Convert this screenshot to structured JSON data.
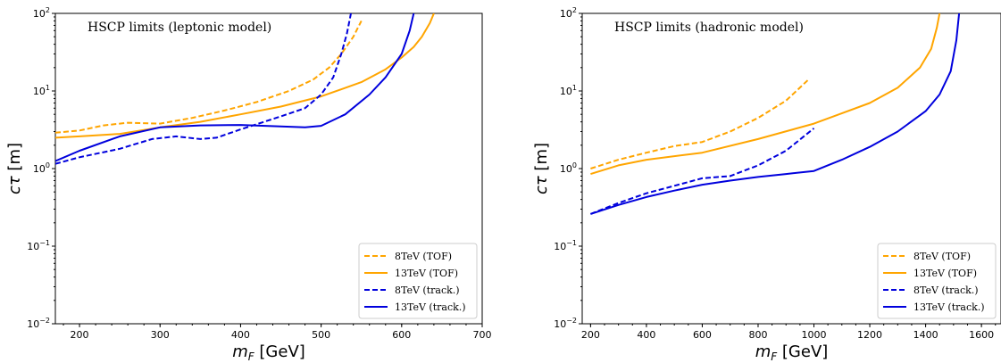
{
  "colors": {
    "orange": "#ffa500",
    "blue": "#0000dd"
  },
  "chart_data": [
    {
      "type": "line",
      "title": "HSCP limits (leptonic model)",
      "xlabel": "m_F [GeV]",
      "ylabel": "cτ [m]",
      "xlim": [
        170,
        700
      ],
      "ylim": [
        0.01,
        100
      ],
      "yscale": "log",
      "xticks": [
        "200",
        "300",
        "400",
        "500",
        "600",
        "700"
      ],
      "yticks": [
        "10^-2",
        "10^-1",
        "10^0",
        "10^1",
        "10^2"
      ],
      "grid": false,
      "legend_position": "lower-right",
      "series": [
        {
          "name": "8TeV (TOF)",
          "style": "dashed",
          "color": "#ffa500",
          "x": [
            170,
            200,
            230,
            260,
            300,
            340,
            380,
            420,
            460,
            490,
            510,
            525,
            540,
            550
          ],
          "y": [
            2.9,
            3.1,
            3.6,
            3.9,
            3.8,
            4.5,
            5.6,
            7.2,
            10.0,
            14.0,
            20.0,
            30.0,
            50.0,
            80.0
          ]
        },
        {
          "name": "13TeV (TOF)",
          "style": "solid",
          "color": "#ffa500",
          "x": [
            170,
            200,
            250,
            300,
            350,
            400,
            450,
            500,
            550,
            580,
            600,
            615,
            625,
            635,
            640
          ],
          "y": [
            2.5,
            2.6,
            2.8,
            3.4,
            4.0,
            5.0,
            6.3,
            8.5,
            13.0,
            19.0,
            27.0,
            37.0,
            50.0,
            75.0,
            100.0
          ]
        },
        {
          "name": "8TeV (track.)",
          "style": "dashed",
          "color": "#0000dd",
          "x": [
            170,
            200,
            250,
            290,
            320,
            350,
            370,
            400,
            450,
            480,
            500,
            515,
            525,
            532,
            537
          ],
          "y": [
            1.15,
            1.4,
            1.8,
            2.4,
            2.6,
            2.4,
            2.5,
            3.2,
            4.7,
            6.0,
            9.0,
            15.0,
            30.0,
            55.0,
            100.0
          ]
        },
        {
          "name": "13TeV (track.)",
          "style": "solid",
          "color": "#0000dd",
          "x": [
            170,
            200,
            250,
            300,
            350,
            400,
            450,
            480,
            500,
            530,
            560,
            580,
            600,
            610,
            615
          ],
          "y": [
            1.25,
            1.7,
            2.6,
            3.4,
            3.6,
            3.65,
            3.5,
            3.4,
            3.55,
            5.0,
            9.0,
            15.0,
            30.0,
            60.0,
            100.0
          ]
        }
      ]
    },
    {
      "type": "line",
      "title": "HSCP limits (hadronic model)",
      "xlabel": "m_F [GeV]",
      "ylabel": "cτ [m]",
      "xlim": [
        170,
        1670
      ],
      "ylim": [
        0.01,
        100
      ],
      "yscale": "log",
      "xticks": [
        "200",
        "400",
        "600",
        "800",
        "1000",
        "1200",
        "1400",
        "1600"
      ],
      "yticks": [
        "10^-2",
        "10^-1",
        "10^0",
        "10^1",
        "10^2"
      ],
      "grid": false,
      "legend_position": "lower-right",
      "series": [
        {
          "name": "8TeV (TOF)",
          "style": "dashed",
          "color": "#ffa500",
          "x": [
            200,
            300,
            400,
            500,
            600,
            700,
            800,
            900,
            980
          ],
          "y": [
            1.0,
            1.3,
            1.6,
            1.95,
            2.2,
            3.0,
            4.5,
            7.5,
            14.0
          ]
        },
        {
          "name": "13TeV (TOF)",
          "style": "solid",
          "color": "#ffa500",
          "x": [
            200,
            300,
            400,
            600,
            800,
            1000,
            1200,
            1300,
            1380,
            1420,
            1440,
            1450
          ],
          "y": [
            0.85,
            1.1,
            1.3,
            1.6,
            2.4,
            3.8,
            7.0,
            11.0,
            20.0,
            35.0,
            65.0,
            100.0
          ]
        },
        {
          "name": "8TeV (track.)",
          "style": "dashed",
          "color": "#0000dd",
          "x": [
            200,
            300,
            400,
            500,
            600,
            700,
            800,
            900,
            1000
          ],
          "y": [
            0.26,
            0.36,
            0.48,
            0.6,
            0.75,
            0.8,
            1.1,
            1.7,
            3.3
          ]
        },
        {
          "name": "13TeV (track.)",
          "style": "solid",
          "color": "#0000dd",
          "x": [
            200,
            300,
            400,
            500,
            600,
            700,
            800,
            900,
            1000,
            1100,
            1200,
            1300,
            1400,
            1450,
            1490,
            1510,
            1520
          ],
          "y": [
            0.26,
            0.34,
            0.43,
            0.52,
            0.62,
            0.7,
            0.78,
            0.85,
            0.93,
            1.3,
            1.9,
            3.0,
            5.5,
            9.0,
            18.0,
            45.0,
            100.0
          ]
        }
      ]
    }
  ]
}
